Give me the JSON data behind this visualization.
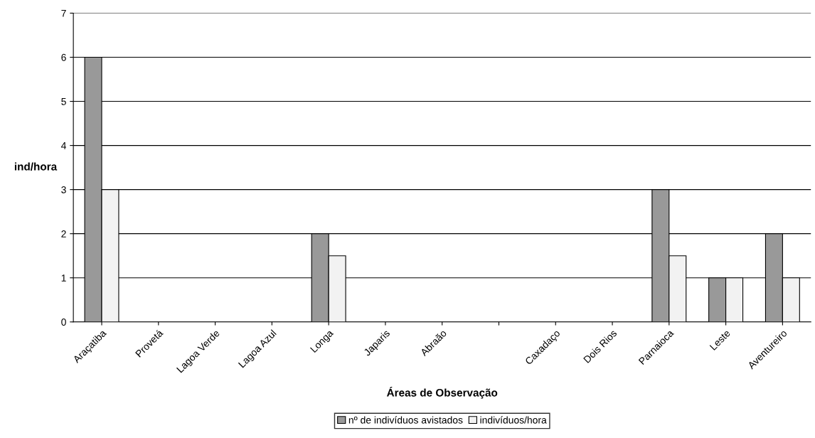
{
  "chart_data": {
    "type": "bar",
    "xlabel": "Áreas de Observação",
    "ylabel": "ind/hora",
    "categories": [
      "Araçatiba",
      "Provetá",
      "Lagoa Verde",
      "Lagoa Azul",
      "Longa",
      "Japaris",
      "Abraão",
      null,
      "Caxadaço",
      "Dois Rios",
      "Parnaioca",
      "Leste",
      "Aventureiro"
    ],
    "series": [
      {
        "name": "nº de indivíduos avistados",
        "color": "#999999",
        "values": [
          6,
          0,
          0,
          0,
          2,
          0,
          0,
          0,
          0,
          0,
          3,
          1,
          2
        ]
      },
      {
        "name": "indivíduos/hora",
        "color": "#f2f2f2",
        "values": [
          3,
          0,
          0,
          0,
          1.5,
          0,
          0,
          0,
          0,
          0,
          1.5,
          1,
          1
        ]
      }
    ],
    "ylim": [
      0,
      7
    ],
    "yticks": [
      0,
      1,
      2,
      3,
      4,
      5,
      6,
      7
    ],
    "grid": "y",
    "legend": "bottom"
  }
}
